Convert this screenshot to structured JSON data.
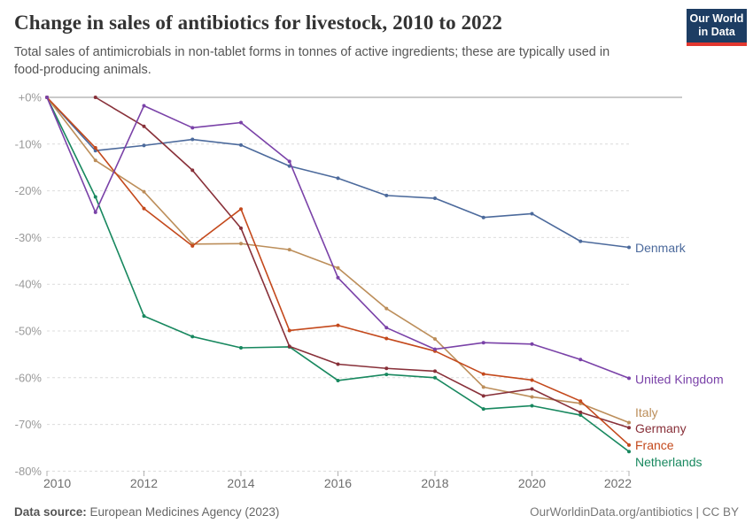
{
  "header": {
    "title": "Change in sales of antibiotics for livestock, 2010 to 2022",
    "subtitle": "Total sales of antimicrobials in non-tablet forms in tonnes of active ingredients; these are typically used in food-producing animals.",
    "logo": {
      "line1": "Our World",
      "line2": "in Data",
      "bg": "#1d3d63",
      "accent": "#e2372f"
    }
  },
  "footer": {
    "source_label": "Data source:",
    "source_value": " European Medicines Agency (2023)",
    "right_text": "OurWorldinData.org/antibiotics | CC BY"
  },
  "chart_data": {
    "type": "line",
    "x": [
      2010,
      2011,
      2012,
      2013,
      2014,
      2015,
      2016,
      2017,
      2018,
      2019,
      2020,
      2021,
      2022
    ],
    "series": [
      {
        "name": "Denmark",
        "color": "#4C6A9C",
        "label_dy": 0.5,
        "values": [
          0,
          -11.4,
          -10.3,
          -9.0,
          -10.2,
          -14.7,
          -17.3,
          -21.0,
          -21.6,
          -25.7,
          -24.9,
          -30.8,
          -32.1
        ]
      },
      {
        "name": "Netherlands",
        "color": "#18885F",
        "label_dy": 11.8,
        "values": [
          0,
          -21.3,
          -46.8,
          -51.2,
          -53.6,
          -53.4,
          -60.6,
          -59.3,
          -60.0,
          -66.7,
          -66.0,
          -68.0,
          -75.8
        ]
      },
      {
        "name": "Italy",
        "color": "#BC8E5A",
        "label_dy": -11.5,
        "values": [
          0,
          -13.5,
          -20.2,
          -31.4,
          -31.3,
          -32.6,
          -36.5,
          -45.2,
          -51.7,
          -62.0,
          -64.1,
          -65.5,
          -69.6
        ]
      },
      {
        "name": "Germany",
        "color": "#883039",
        "label_dy": 0.7,
        "values": [
          null,
          0,
          -6.2,
          -15.6,
          -28.0,
          -53.3,
          -57.1,
          -58.0,
          -58.6,
          -63.9,
          -62.4,
          -67.4,
          -70.7
        ]
      },
      {
        "name": "France",
        "color": "#C4491C",
        "label_dy": 0.2,
        "values": [
          0,
          -10.8,
          -23.8,
          -31.8,
          -23.9,
          -49.9,
          -48.8,
          -51.6,
          -54.3,
          -59.2,
          -60.5,
          -65.0,
          -74.4
        ]
      },
      {
        "name": "United Kingdom",
        "color": "#7A42A8",
        "label_dy": 1.6,
        "values": [
          0,
          -24.6,
          -1.8,
          -6.5,
          -5.4,
          -13.7,
          -38.6,
          -49.3,
          -53.9,
          -52.5,
          -52.8,
          -56.1,
          -60.1
        ]
      }
    ],
    "title": "Change in sales of antibiotics for livestock, 2010 to 2022",
    "xlabel": "",
    "ylabel": "",
    "ylim": [
      -80,
      0
    ],
    "ytick_labels": [
      "+0%",
      "-10%",
      "-20%",
      "-30%",
      "-40%",
      "-50%",
      "-60%",
      "-70%",
      "-80%"
    ],
    "xtick_labels": [
      "2010",
      "2012",
      "2014",
      "2016",
      "2018",
      "2020",
      "2022"
    ],
    "xticks": [
      2010,
      2012,
      2014,
      2016,
      2018,
      2020,
      2022
    ],
    "grid": "horizontal-dashed",
    "legend_position": "right-edge-labels",
    "axis_color": "#999999",
    "zero_line_color": "#c3c3c3",
    "gridline_color": "#dcdcdc"
  }
}
